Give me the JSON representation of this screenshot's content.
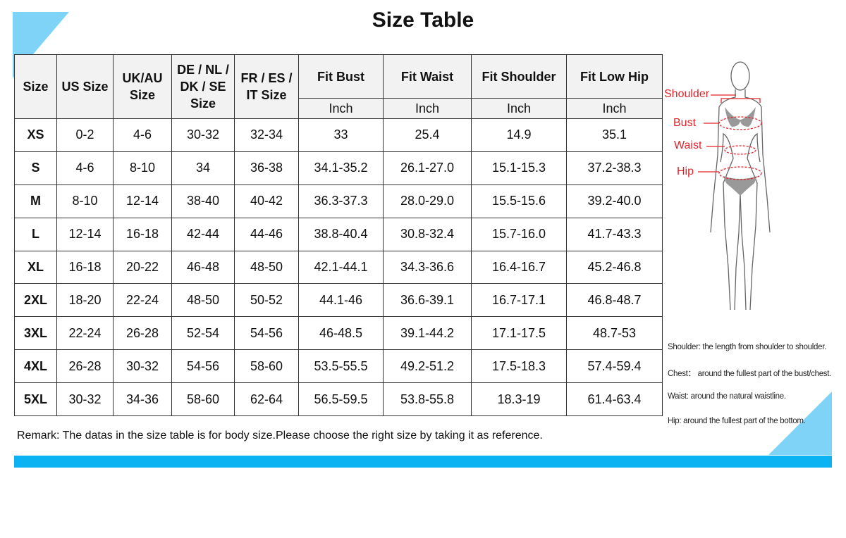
{
  "title": "Size Table",
  "accent_color": "#0bb3f2",
  "triangle_color": "#7fd3f7",
  "table": {
    "headers": [
      "Size",
      "US Size",
      "UK/AU Size",
      "DE / NL / DK / SE Size",
      "FR / ES / IT Size",
      "Fit Bust",
      "Fit Waist",
      "Fit Shoulder",
      "Fit Low Hip"
    ],
    "unit": "Inch",
    "rows": [
      [
        "XS",
        "0-2",
        "4-6",
        "30-32",
        "32-34",
        "33",
        "25.4",
        "14.9",
        "35.1"
      ],
      [
        "S",
        "4-6",
        "8-10",
        "34",
        "36-38",
        "34.1-35.2",
        "26.1-27.0",
        "15.1-15.3",
        "37.2-38.3"
      ],
      [
        "M",
        "8-10",
        "12-14",
        "38-40",
        "40-42",
        "36.3-37.3",
        "28.0-29.0",
        "15.5-15.6",
        "39.2-40.0"
      ],
      [
        "L",
        "12-14",
        "16-18",
        "42-44",
        "44-46",
        "38.8-40.4",
        "30.8-32.4",
        "15.7-16.0",
        "41.7-43.3"
      ],
      [
        "XL",
        "16-18",
        "20-22",
        "46-48",
        "48-50",
        "42.1-44.1",
        "34.3-36.6",
        "16.4-16.7",
        "45.2-46.8"
      ],
      [
        "2XL",
        "18-20",
        "22-24",
        "48-50",
        "50-52",
        "44.1-46",
        "36.6-39.1",
        "16.7-17.1",
        "46.8-48.7"
      ],
      [
        "3XL",
        "22-24",
        "26-28",
        "52-54",
        "54-56",
        "46-48.5",
        "39.1-44.2",
        "17.1-17.5",
        "48.7-53"
      ],
      [
        "4XL",
        "26-28",
        "30-32",
        "54-56",
        "58-60",
        "53.5-55.5",
        "49.2-51.2",
        "17.5-18.3",
        "57.4-59.4"
      ],
      [
        "5XL",
        "30-32",
        "34-36",
        "58-60",
        "62-64",
        "56.5-59.5",
        "53.8-55.8",
        "18.3-19",
        "61.4-63.4"
      ]
    ]
  },
  "remark": "Remark: The datas in the size table is for body size.Please choose the right size by taking it as reference.",
  "figure": {
    "labels": [
      "Shoulder",
      "Bust",
      "Waist",
      "Hip"
    ],
    "label_color": "#e0232a"
  },
  "notes": [
    "Shoulder:  the length from shoulder to shoulder.",
    "Chest： around the fullest part of the bust/chest.",
    "Waist: around the natural waistline.",
    "Hip: around the fullest part of the bottom."
  ]
}
